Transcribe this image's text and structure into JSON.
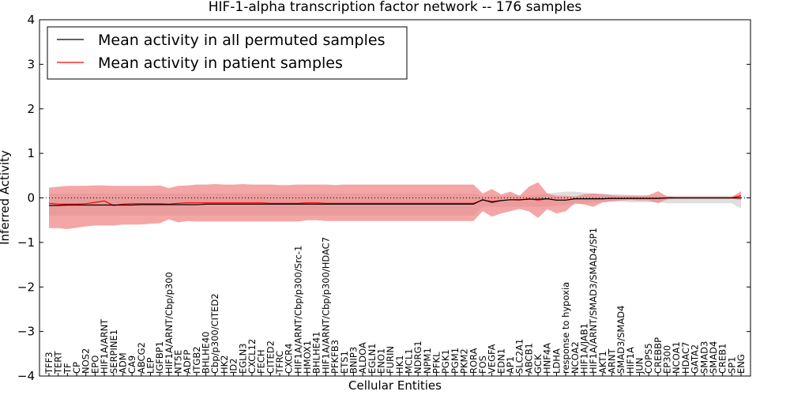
{
  "chart_data": {
    "type": "line",
    "title": "HIF-1-alpha transcription factor network -- 176 samples",
    "xlabel": "Cellular Entities",
    "ylabel": "Inferred Activity",
    "ylim": [
      -4,
      4
    ],
    "yticks": [
      -4,
      -3,
      -2,
      -1,
      0,
      1,
      2,
      3,
      4
    ],
    "grid": false,
    "reference_line": 0,
    "legend_position": "top-left",
    "colors": {
      "permuted": "#000000",
      "patient": "#ff0000",
      "patient_band": "#f08080",
      "permuted_band": "#c8c8c8"
    },
    "categories": [
      "TFF3",
      "TERT",
      "TF",
      "CP",
      "NOS2",
      "EPO",
      "HIF1A/ARNT",
      "SERPINE1",
      "ADM",
      "CA9",
      "ABCG2",
      "LEP",
      "IGFBP1",
      "HIF1A/ARNT/Cbp/p300",
      "NT5E",
      "ADFP",
      "ITGB2",
      "BHLHE40",
      "Cbp/p300/CITED2",
      "HK2",
      "ID2",
      "EGLN3",
      "CXCL12",
      "FECH",
      "CITED2",
      "TFRC",
      "CXCR4",
      "HIF1A/ARNT/Cbp/p300/Src-1",
      "HMOX1",
      "BHLHE41",
      "HIF1A/ARNT/Cbp/p300/HDAC7",
      "PFKFB3",
      "ETS1",
      "BNIP3",
      "ALDOA",
      "EGLN1",
      "ENO1",
      "FURIN",
      "HK1",
      "MCL1",
      "NDRG1",
      "NPM1",
      "PFKL",
      "PGK1",
      "PGM1",
      "PKM2",
      "RORA",
      "FOS",
      "VEGFA",
      "EDN1",
      "AP1",
      "SLC2A1",
      "ABCB1",
      "GCK",
      "HNF4A",
      "LDHA",
      "response to hypoxia",
      "NCOA2",
      "HIF1A/JAB1",
      "HIF1A/ARNT/SMAD3/SMAD4/SP1",
      "AKT1",
      "ARNT",
      "SMAD3/SMAD4",
      "HIF1A",
      "JUN",
      "COPS5",
      "CREBBP",
      "EP300",
      "NCOA1",
      "HDAC7",
      "GATA2",
      "SMAD3",
      "SMAD4",
      "CREB1",
      "SP1",
      "ENG"
    ],
    "series": [
      {
        "name": "Mean activity in all permuted samples",
        "values": [
          -0.17,
          -0.17,
          -0.16,
          -0.16,
          -0.16,
          -0.16,
          -0.16,
          -0.16,
          -0.16,
          -0.16,
          -0.15,
          -0.15,
          -0.15,
          -0.15,
          -0.15,
          -0.15,
          -0.15,
          -0.14,
          -0.14,
          -0.14,
          -0.14,
          -0.14,
          -0.14,
          -0.14,
          -0.14,
          -0.14,
          -0.14,
          -0.14,
          -0.14,
          -0.14,
          -0.14,
          -0.14,
          -0.14,
          -0.14,
          -0.14,
          -0.14,
          -0.14,
          -0.14,
          -0.14,
          -0.14,
          -0.14,
          -0.14,
          -0.14,
          -0.14,
          -0.14,
          -0.14,
          -0.14,
          -0.04,
          -0.1,
          -0.06,
          -0.04,
          -0.04,
          -0.03,
          -0.03,
          -0.02,
          -0.05,
          -0.05,
          -0.02,
          -0.02,
          -0.02,
          -0.02,
          -0.01,
          -0.01,
          -0.01,
          -0.01,
          -0.01,
          -0.01,
          0,
          0,
          0,
          0,
          0,
          0,
          0,
          0,
          0
        ]
      },
      {
        "name": "Mean activity in patient samples",
        "values": [
          -0.12,
          -0.14,
          -0.14,
          -0.14,
          -0.13,
          -0.1,
          -0.07,
          -0.17,
          -0.14,
          -0.13,
          -0.13,
          -0.13,
          -0.13,
          -0.14,
          -0.12,
          -0.11,
          -0.11,
          -0.11,
          -0.11,
          -0.11,
          -0.11,
          -0.11,
          -0.11,
          -0.11,
          -0.12,
          -0.12,
          -0.12,
          -0.12,
          -0.11,
          -0.11,
          -0.12,
          -0.12,
          -0.12,
          -0.12,
          -0.12,
          -0.12,
          -0.12,
          -0.12,
          -0.12,
          -0.12,
          -0.12,
          -0.12,
          -0.12,
          -0.12,
          -0.12,
          -0.12,
          -0.12,
          -0.05,
          -0.08,
          -0.06,
          -0.04,
          -0.05,
          -0.02,
          -0.05,
          -0.02,
          -0.05,
          -0.05,
          -0.02,
          -0.02,
          -0.02,
          -0.02,
          -0.01,
          -0.01,
          -0.01,
          -0.01,
          -0.01,
          -0.01,
          0,
          0,
          0,
          0,
          0,
          0,
          0,
          0,
          0.05
        ]
      }
    ],
    "patient_band": {
      "upper": [
        0.23,
        0.25,
        0.27,
        0.27,
        0.27,
        0.28,
        0.28,
        0.27,
        0.27,
        0.27,
        0.27,
        0.27,
        0.28,
        0.22,
        0.27,
        0.28,
        0.3,
        0.3,
        0.31,
        0.3,
        0.3,
        0.31,
        0.3,
        0.3,
        0.3,
        0.29,
        0.29,
        0.3,
        0.3,
        0.3,
        0.3,
        0.29,
        0.3,
        0.3,
        0.3,
        0.3,
        0.3,
        0.3,
        0.3,
        0.3,
        0.3,
        0.3,
        0.3,
        0.3,
        0.3,
        0.3,
        0.3,
        0.1,
        0.2,
        0.08,
        0.14,
        0.05,
        0.25,
        0.35,
        0.1,
        0.05,
        0.05,
        0.03,
        0.08,
        0.1,
        0.08,
        0.06,
        0.05,
        0.05,
        0.05,
        0.06,
        0.15,
        0.03,
        0.02,
        0.02,
        0.02,
        0.02,
        0.02,
        0.02,
        0.02,
        0.15
      ],
      "lower": [
        -0.68,
        -0.68,
        -0.7,
        -0.67,
        -0.64,
        -0.62,
        -0.62,
        -0.62,
        -0.6,
        -0.6,
        -0.6,
        -0.58,
        -0.57,
        -0.48,
        -0.55,
        -0.52,
        -0.53,
        -0.53,
        -0.53,
        -0.53,
        -0.53,
        -0.53,
        -0.53,
        -0.53,
        -0.53,
        -0.53,
        -0.53,
        -0.53,
        -0.5,
        -0.5,
        -0.52,
        -0.52,
        -0.52,
        -0.52,
        -0.52,
        -0.52,
        -0.52,
        -0.52,
        -0.52,
        -0.52,
        -0.52,
        -0.52,
        -0.52,
        -0.52,
        -0.52,
        -0.52,
        -0.52,
        -0.3,
        -0.42,
        -0.35,
        -0.3,
        -0.25,
        -0.3,
        -0.45,
        -0.25,
        -0.35,
        -0.3,
        -0.12,
        -0.15,
        -0.2,
        -0.1,
        -0.08,
        -0.06,
        -0.05,
        -0.06,
        -0.06,
        -0.12,
        -0.03,
        -0.02,
        -0.02,
        -0.02,
        -0.02,
        -0.02,
        -0.02,
        -0.02,
        -0.05
      ]
    },
    "permuted_band": {
      "upper": [
        0.1,
        0.1,
        0.1,
        0.1,
        0.1,
        0.1,
        0.1,
        0.1,
        0.1,
        0.1,
        0.1,
        0.1,
        0.1,
        0.1,
        0.1,
        0.1,
        0.1,
        0.1,
        0.1,
        0.1,
        0.1,
        0.1,
        0.1,
        0.1,
        0.1,
        0.1,
        0.1,
        0.1,
        0.1,
        0.1,
        0.1,
        0.1,
        0.1,
        0.1,
        0.1,
        0.1,
        0.1,
        0.1,
        0.1,
        0.1,
        0.1,
        0.1,
        0.1,
        0.1,
        0.1,
        0.1,
        0.1,
        0.05,
        0.05,
        0.05,
        0.05,
        0.05,
        0.05,
        0.08,
        0.1,
        0.12,
        0.14,
        0.14,
        0.12,
        0.1,
        0.1,
        0.08,
        0.08,
        0.07,
        0.06,
        0.05,
        0.05,
        0.05,
        0.05,
        0.05,
        0.05,
        0.05,
        0.05,
        0.05,
        0.05,
        0.06
      ],
      "lower": [
        -0.4,
        -0.4,
        -0.4,
        -0.4,
        -0.4,
        -0.4,
        -0.4,
        -0.4,
        -0.4,
        -0.4,
        -0.4,
        -0.4,
        -0.4,
        -0.4,
        -0.4,
        -0.4,
        -0.4,
        -0.4,
        -0.4,
        -0.4,
        -0.4,
        -0.4,
        -0.4,
        -0.4,
        -0.4,
        -0.4,
        -0.4,
        -0.4,
        -0.4,
        -0.4,
        -0.4,
        -0.4,
        -0.4,
        -0.4,
        -0.4,
        -0.4,
        -0.4,
        -0.4,
        -0.4,
        -0.4,
        -0.4,
        -0.4,
        -0.4,
        -0.4,
        -0.4,
        -0.4,
        -0.4,
        -0.2,
        -0.2,
        -0.2,
        -0.2,
        -0.2,
        -0.2,
        -0.2,
        -0.2,
        -0.18,
        -0.16,
        -0.15,
        -0.12,
        -0.1,
        -0.1,
        -0.08,
        -0.08,
        -0.1,
        -0.1,
        -0.1,
        -0.1,
        -0.12,
        -0.12,
        -0.12,
        -0.12,
        -0.12,
        -0.12,
        -0.12,
        -0.12,
        -0.24
      ]
    }
  }
}
